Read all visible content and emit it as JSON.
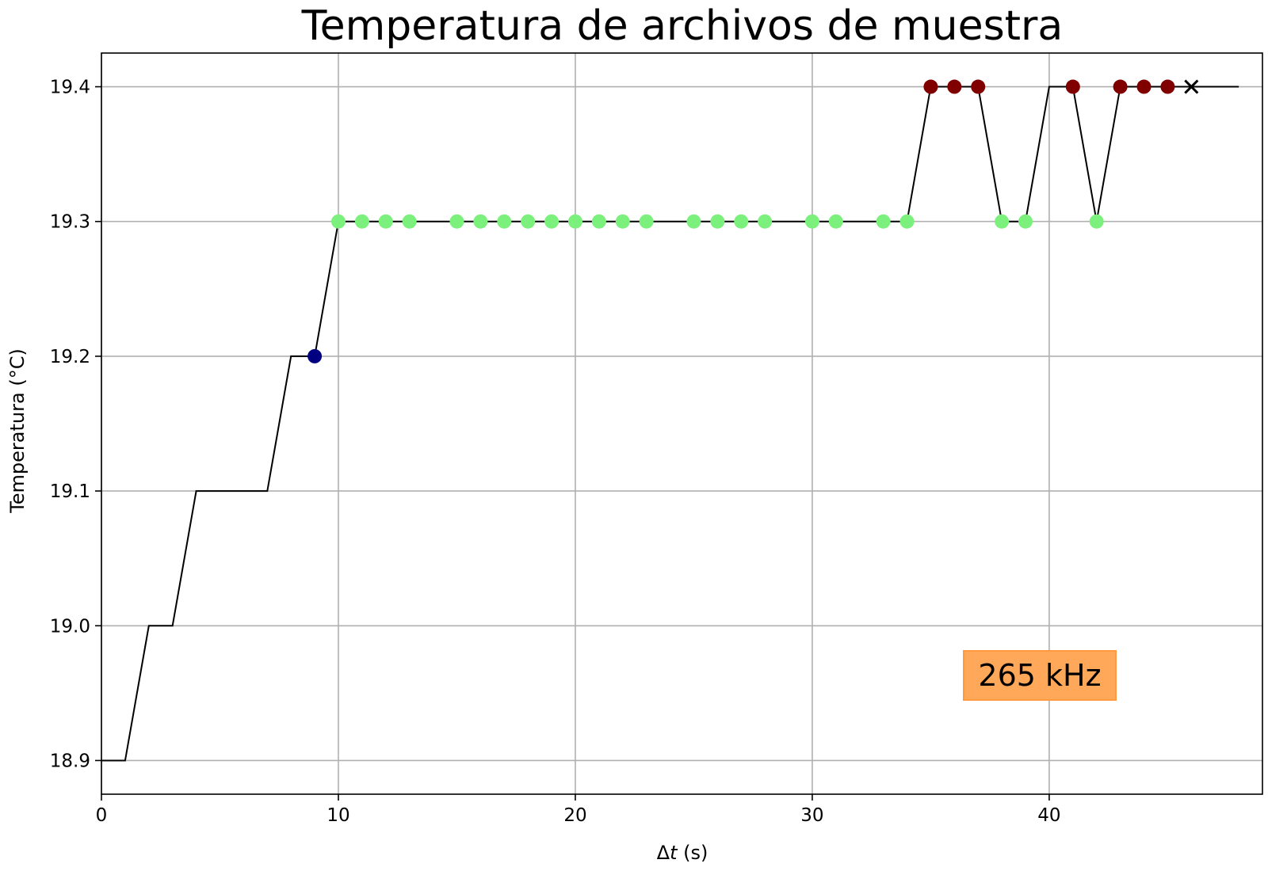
{
  "chart_data": {
    "type": "line",
    "title": "Temperatura de archivos de muestra",
    "xlabel_prefix": "Δ",
    "xlabel_var": "t",
    "xlabel_suffix": " (s)",
    "ylabel": "Temperatura (°C)",
    "xlim": [
      0,
      49
    ],
    "ylim": [
      18.875,
      19.425
    ],
    "xticks": [
      0,
      10,
      20,
      30,
      40
    ],
    "yticks": [
      18.9,
      19.0,
      19.1,
      19.2,
      19.3,
      19.4
    ],
    "grid": true,
    "line": {
      "color": "#000000",
      "x": [
        0,
        1,
        2,
        3,
        4,
        5,
        6,
        7,
        8,
        9,
        10,
        11,
        12,
        13,
        14,
        15,
        16,
        17,
        18,
        19,
        20,
        21,
        22,
        23,
        24,
        25,
        26,
        27,
        28,
        29,
        30,
        31,
        32,
        33,
        34,
        35,
        36,
        37,
        38,
        39,
        40,
        41,
        42,
        43,
        44,
        45,
        46,
        47,
        48
      ],
      "y": [
        18.9,
        18.9,
        19.0,
        19.0,
        19.1,
        19.1,
        19.1,
        19.1,
        19.2,
        19.2,
        19.3,
        19.3,
        19.3,
        19.3,
        19.3,
        19.3,
        19.3,
        19.3,
        19.3,
        19.3,
        19.3,
        19.3,
        19.3,
        19.3,
        19.3,
        19.3,
        19.3,
        19.3,
        19.3,
        19.3,
        19.3,
        19.3,
        19.3,
        19.3,
        19.3,
        19.4,
        19.4,
        19.4,
        19.3,
        19.3,
        19.4,
        19.4,
        19.3,
        19.4,
        19.4,
        19.4,
        19.4,
        19.4,
        19.4
      ]
    },
    "point_series": [
      {
        "color": "#000080",
        "points": [
          [
            9,
            19.2
          ]
        ]
      },
      {
        "color": "#7cf07c",
        "points": [
          [
            10,
            19.3
          ],
          [
            11,
            19.3
          ],
          [
            12,
            19.3
          ],
          [
            13,
            19.3
          ],
          [
            15,
            19.3
          ],
          [
            16,
            19.3
          ],
          [
            17,
            19.3
          ],
          [
            18,
            19.3
          ],
          [
            19,
            19.3
          ],
          [
            20,
            19.3
          ],
          [
            21,
            19.3
          ],
          [
            22,
            19.3
          ],
          [
            23,
            19.3
          ],
          [
            25,
            19.3
          ],
          [
            26,
            19.3
          ],
          [
            27,
            19.3
          ],
          [
            28,
            19.3
          ],
          [
            30,
            19.3
          ],
          [
            31,
            19.3
          ],
          [
            33,
            19.3
          ],
          [
            34,
            19.3
          ],
          [
            38,
            19.3
          ],
          [
            39,
            19.3
          ],
          [
            42,
            19.3
          ]
        ]
      },
      {
        "color": "#800000",
        "points": [
          [
            35,
            19.4
          ],
          [
            36,
            19.4
          ],
          [
            37,
            19.4
          ],
          [
            41,
            19.4
          ],
          [
            43,
            19.4
          ],
          [
            44,
            19.4
          ],
          [
            45,
            19.4
          ]
        ]
      }
    ],
    "cross_marker": {
      "color": "#000000",
      "x": 46,
      "y": 19.4
    },
    "annotation": {
      "text": "265 kHz",
      "bg": "#ffa85a",
      "border": "#ff9a40"
    }
  }
}
